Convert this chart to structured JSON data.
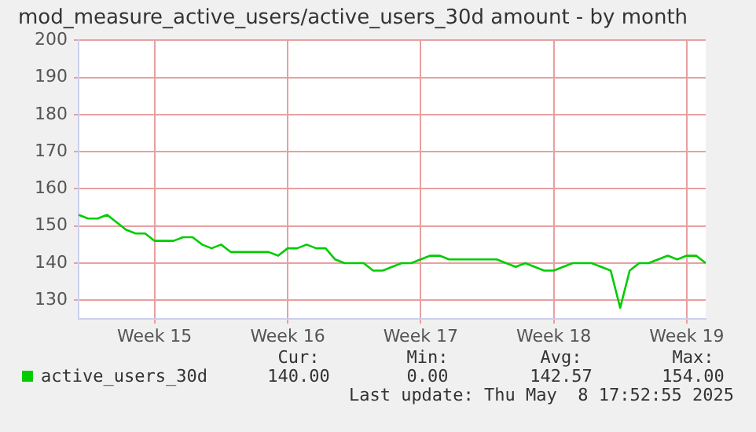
{
  "chart_data": {
    "type": "line",
    "title": "mod_measure_active_users/active_users_30d amount - by month",
    "categories": [
      null,
      null,
      null,
      null,
      null,
      null,
      null,
      null,
      "Week 15",
      null,
      null,
      null,
      null,
      null,
      null,
      null,
      null,
      null,
      null,
      null,
      null,
      null,
      "Week 16",
      null,
      null,
      null,
      null,
      null,
      null,
      null,
      null,
      null,
      null,
      null,
      null,
      null,
      "Week 17",
      null,
      null,
      null,
      null,
      null,
      null,
      null,
      null,
      null,
      null,
      null,
      null,
      null,
      "Week 18",
      null,
      null,
      null,
      null,
      null,
      null,
      null,
      null,
      null,
      null,
      null,
      null,
      null,
      "Week 19",
      null,
      null
    ],
    "series": [
      {
        "name": "active_users_30d",
        "color": "#00cc00",
        "values": [
          153,
          152,
          152,
          153,
          151,
          149,
          148,
          148,
          146,
          146,
          146,
          147,
          147,
          145,
          144,
          145,
          143,
          143,
          143,
          143,
          143,
          142,
          144,
          144,
          145,
          144,
          144,
          141,
          140,
          140,
          140,
          138,
          138,
          139,
          140,
          140,
          141,
          142,
          142,
          141,
          141,
          141,
          141,
          141,
          141,
          140,
          139,
          140,
          139,
          138,
          138,
          139,
          140,
          140,
          140,
          139,
          138,
          128,
          138,
          140,
          140,
          141,
          142,
          141,
          142,
          142,
          140
        ]
      }
    ],
    "ylim": [
      125,
      200
    ],
    "yticks": [
      130,
      140,
      150,
      160,
      170,
      180,
      190,
      200
    ],
    "grid": true,
    "legend": "bottom",
    "marker": "none",
    "line_style": "solid",
    "annotations": [
      "Cur:",
      "Min:",
      "Avg:",
      "Max:",
      "140.00",
      "0.00",
      "142.57",
      "154.00",
      "Last update: Thu May  8 17:52:55 2025"
    ]
  }
}
